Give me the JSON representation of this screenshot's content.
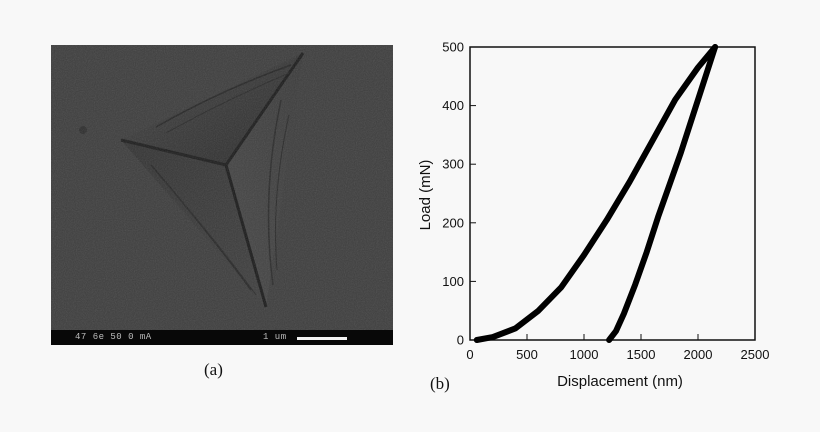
{
  "panels": {
    "a_label": "(a)",
    "b_label": "(b)"
  },
  "sem": {
    "databar_left": "47 6e  50 0 mA",
    "databar_right": "1 um"
  },
  "chart_data": {
    "type": "line",
    "title": "",
    "xlabel": "Displacement (nm)",
    "ylabel": "Load (mN)",
    "xlim": [
      0,
      2500
    ],
    "ylim": [
      0,
      500
    ],
    "xticks": [
      0,
      500,
      1000,
      1500,
      2000,
      2500
    ],
    "yticks": [
      0,
      100,
      200,
      300,
      400,
      500
    ],
    "grid": false,
    "legend": "none",
    "series": [
      {
        "color": "#000000",
        "x": [
          60,
          200,
          400,
          600,
          800,
          1000,
          1200,
          1400,
          1600,
          1800,
          2000,
          2150
        ],
        "y": [
          0,
          5,
          20,
          50,
          90,
          145,
          205,
          270,
          340,
          410,
          465,
          500
        ]
      },
      {
        "color": "#000000",
        "x": [
          2150,
          2050,
          1950,
          1850,
          1750,
          1650,
          1550,
          1450,
          1350,
          1280,
          1220
        ],
        "y": [
          500,
          440,
          380,
          320,
          265,
          210,
          150,
          95,
          45,
          15,
          0
        ]
      }
    ]
  }
}
